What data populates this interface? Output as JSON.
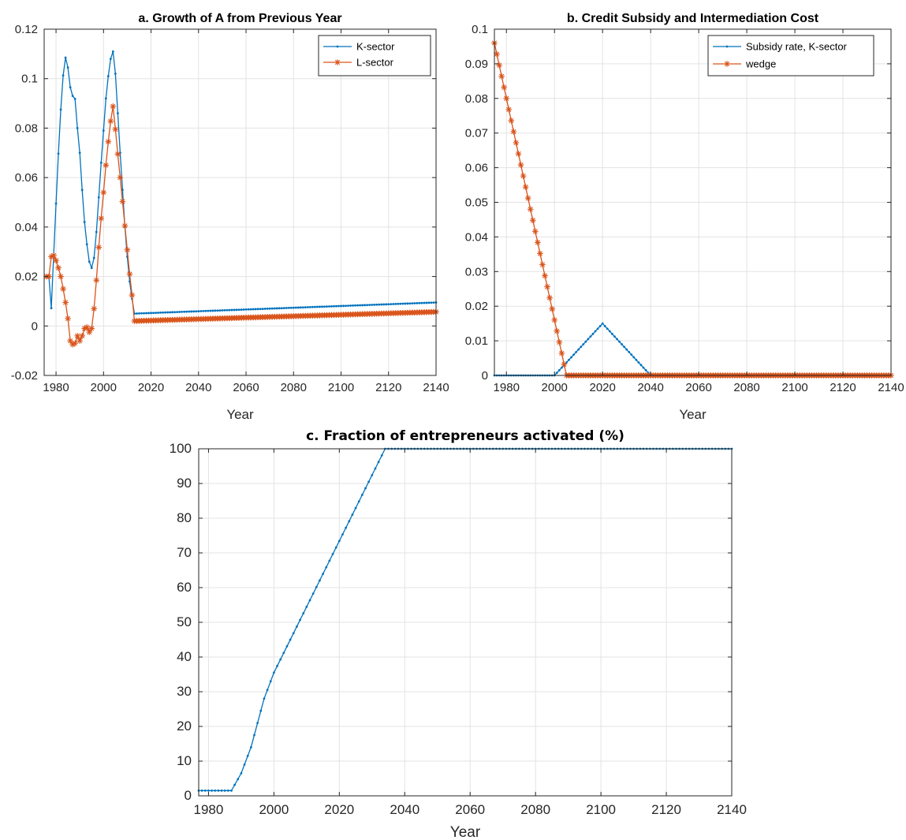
{
  "colors": {
    "k_sector": "#0072BD",
    "l_sector": "#D95319",
    "grid": "#e3e3e3",
    "axis": "#262626"
  },
  "chart_data": [
    {
      "id": "a",
      "type": "line",
      "title": "a. Growth of A from Previous Year",
      "xlabel": "Year",
      "ylabel": "",
      "xlim": [
        1975,
        2140
      ],
      "ylim": [
        -0.02,
        0.12
      ],
      "xticks": [
        "1980",
        "2000",
        "2020",
        "2040",
        "2060",
        "2080",
        "2100",
        "2120",
        "2140"
      ],
      "yticks": [
        "-0.02",
        "0",
        "0.02",
        "0.04",
        "0.06",
        "0.08",
        "0.1",
        "0.12"
      ],
      "grid": true,
      "legend_position": "top-right",
      "series": [
        {
          "name": "K-sector",
          "color": "#0072BD",
          "marker": "dot",
          "x": [
            1976,
            1977,
            1978,
            1979,
            1980,
            1981,
            1982,
            1983,
            1984,
            1985,
            1986,
            1987,
            1988,
            1989,
            1990,
            1991,
            1992,
            1993,
            1994,
            1995,
            1996,
            1997,
            1998,
            1999,
            2000,
            2001,
            2002,
            2003,
            2004,
            2005,
            2006,
            2007,
            2008,
            2009,
            2010,
            2011,
            2012,
            2013,
            2140
          ],
          "y": [
            0.02,
            0.02,
            0.0072,
            0.0286,
            0.0495,
            0.0697,
            0.0875,
            0.1013,
            0.1085,
            0.1045,
            0.0965,
            0.093,
            0.0918,
            0.08,
            0.07,
            0.055,
            0.042,
            0.033,
            0.026,
            0.0235,
            0.0275,
            0.038,
            0.052,
            0.066,
            0.079,
            0.092,
            0.101,
            0.108,
            0.111,
            0.102,
            0.086,
            0.07,
            0.055,
            0.04,
            0.028,
            0.018,
            0.011,
            0.005,
            0.0095
          ]
        },
        {
          "name": "L-sector",
          "color": "#D95319",
          "marker": "star",
          "x": [
            1976,
            1977,
            1978,
            1979,
            1980,
            1981,
            1982,
            1983,
            1984,
            1985,
            1986,
            1987,
            1988,
            1989,
            1990,
            1991,
            1992,
            1993,
            1994,
            1995,
            1996,
            1997,
            1998,
            1999,
            2000,
            2001,
            2002,
            2003,
            2004,
            2005,
            2006,
            2007,
            2008,
            2009,
            2010,
            2011,
            2012,
            2013,
            2140
          ],
          "y": [
            0.02,
            0.02,
            0.028,
            0.0285,
            0.0265,
            0.0235,
            0.02,
            0.015,
            0.0095,
            0.003,
            -0.006,
            -0.0075,
            -0.007,
            -0.004,
            -0.006,
            -0.004,
            -0.001,
            -0.0005,
            -0.0025,
            -0.001,
            0.007,
            0.0185,
            0.0318,
            0.0435,
            0.054,
            0.065,
            0.0745,
            0.0828,
            0.0888,
            0.0795,
            0.0695,
            0.06,
            0.0503,
            0.0405,
            0.0308,
            0.021,
            0.0125,
            0.002,
            0.0057
          ]
        }
      ]
    },
    {
      "id": "b",
      "type": "line",
      "title": "b. Credit Subsidy and Intermediation Cost",
      "xlabel": "Year",
      "ylabel": "",
      "xlim": [
        1975,
        2140
      ],
      "ylim": [
        0,
        0.1
      ],
      "xticks": [
        "1980",
        "2000",
        "2020",
        "2040",
        "2060",
        "2080",
        "2100",
        "2120",
        "2140"
      ],
      "yticks": [
        "0",
        "0.01",
        "0.02",
        "0.03",
        "0.04",
        "0.05",
        "0.06",
        "0.07",
        "0.08",
        "0.09",
        "0.1"
      ],
      "grid": true,
      "legend_position": "top-right",
      "series": [
        {
          "name": "Subsidy rate, K-sector",
          "color": "#0072BD",
          "marker": "dot",
          "x": [
            1975,
            2000,
            2020,
            2040,
            2140
          ],
          "y": [
            0,
            0,
            0.015,
            0,
            0
          ]
        },
        {
          "name": "wedge",
          "color": "#D95319",
          "marker": "star",
          "x": [
            1975,
            2005,
            2140
          ],
          "y": [
            0.096,
            0,
            0
          ]
        }
      ]
    },
    {
      "id": "c",
      "type": "line",
      "title": "c. Fraction of entrepreneurs activated (%)",
      "xlabel": "Year",
      "ylabel": "",
      "xlim": [
        1977,
        2140
      ],
      "ylim": [
        0,
        100
      ],
      "xticks": [
        "1980",
        "2000",
        "2020",
        "2040",
        "2060",
        "2080",
        "2100",
        "2120",
        "2140"
      ],
      "yticks": [
        "0",
        "10",
        "20",
        "30",
        "40",
        "50",
        "60",
        "70",
        "80",
        "90",
        "100"
      ],
      "grid": true,
      "series": [
        {
          "name": "",
          "color": "#0072BD",
          "marker": "dot",
          "x": [
            1977,
            1987,
            1990,
            1993,
            1995,
            1997,
            1998,
            2000,
            2034,
            2140
          ],
          "y": [
            1.5,
            1.5,
            6.5,
            14,
            21,
            28,
            30.5,
            35.5,
            100,
            100
          ]
        }
      ]
    }
  ]
}
